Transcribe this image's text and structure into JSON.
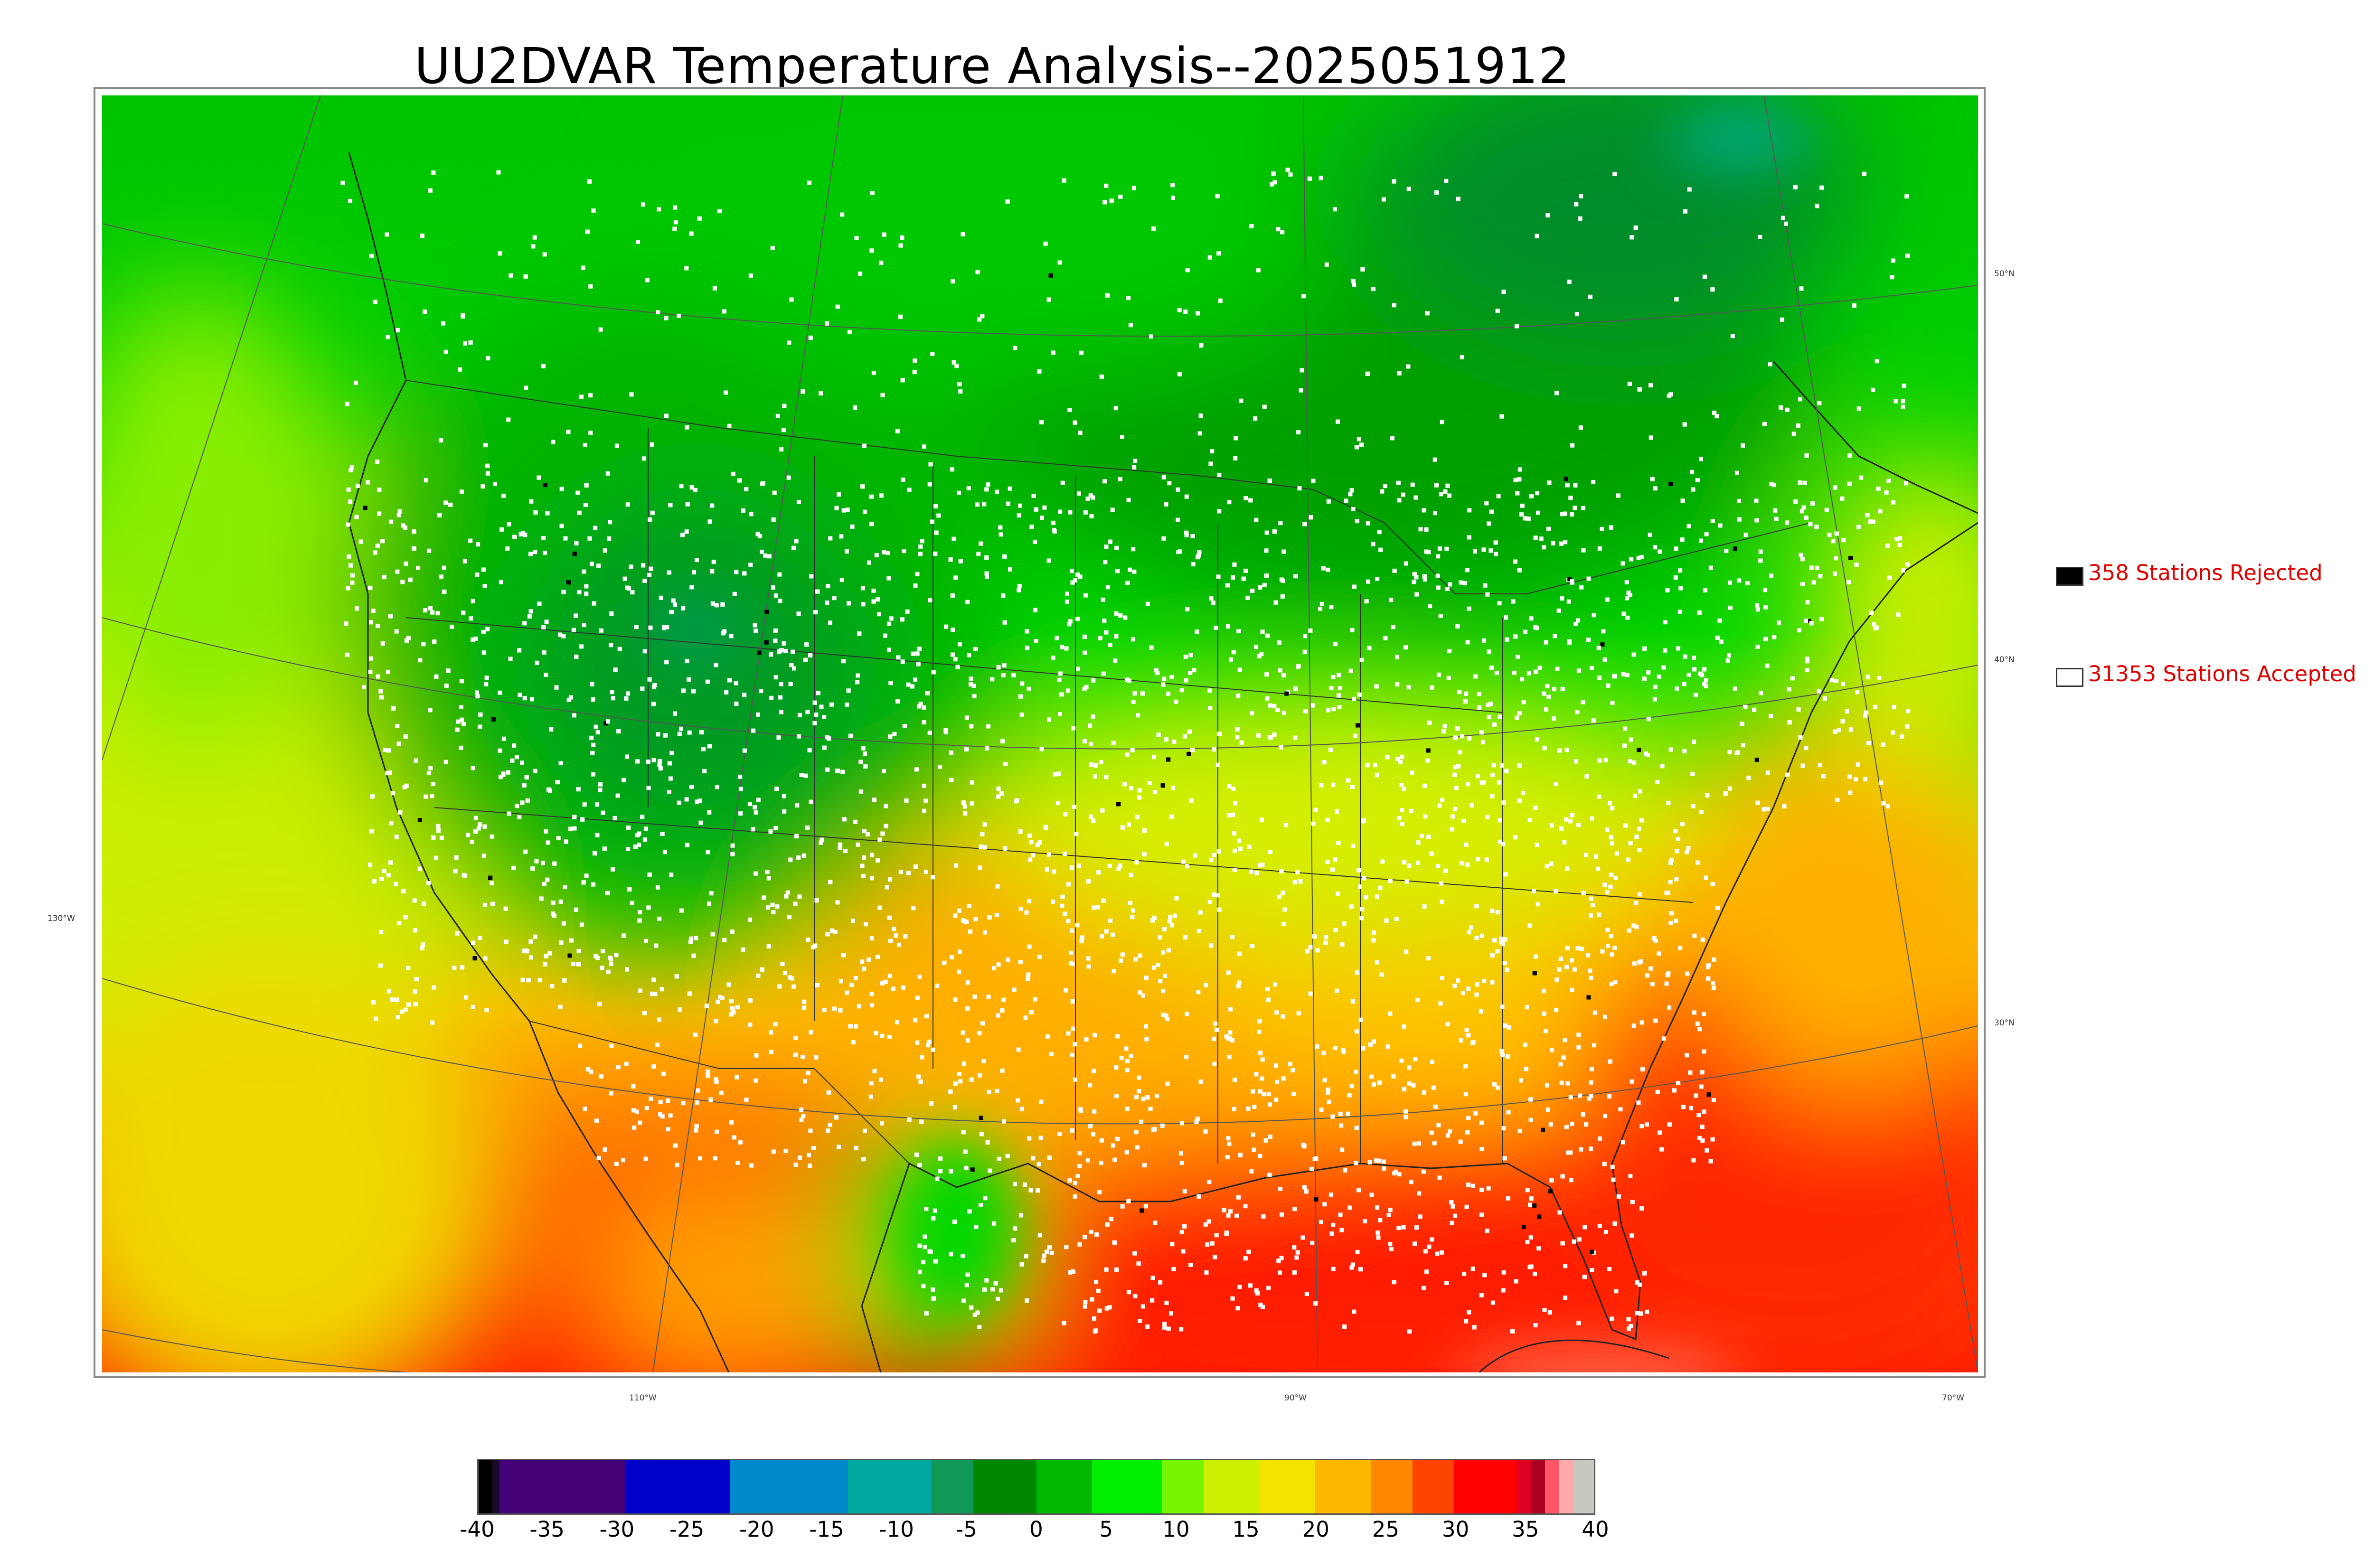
{
  "title": "UU2DVAR Temperature Analysis--2025051912",
  "legend": {
    "rejected": {
      "label": "358 Stations Rejected",
      "swatch_color": "#000000"
    },
    "accepted": {
      "label": "31353 Stations Accepted",
      "swatch_color": "#ffffff"
    }
  },
  "graticule": {
    "lat_labels": [
      "50°N",
      "40°N",
      "30°N"
    ],
    "lon_labels": [
      "130°W",
      "110°W",
      "90°W",
      "70°W"
    ]
  },
  "colorbar": {
    "ticks": [
      "-40",
      "-35",
      "-30",
      "-25",
      "-20",
      "-15",
      "-10",
      "-5",
      "0",
      "5",
      "10",
      "15",
      "20",
      "25",
      "30",
      "35",
      "40"
    ],
    "range": [
      -40,
      40
    ],
    "segments": [
      {
        "from": -40,
        "to": -39,
        "color": "#000000"
      },
      {
        "from": -39,
        "to": -38.5,
        "color": "#1a0a2a"
      },
      {
        "from": -38.5,
        "to": -29.5,
        "color": "#440077"
      },
      {
        "from": -29.5,
        "to": -22,
        "color": "#0000cc"
      },
      {
        "from": -22,
        "to": -13.5,
        "color": "#0088cc"
      },
      {
        "from": -13.5,
        "to": -7.5,
        "color": "#00a8a0"
      },
      {
        "from": -7.5,
        "to": -4.5,
        "color": "#109858"
      },
      {
        "from": -4.5,
        "to": 0,
        "color": "#008800"
      },
      {
        "from": 0,
        "to": 4,
        "color": "#00b800"
      },
      {
        "from": 4,
        "to": 9,
        "color": "#00ee00"
      },
      {
        "from": 9,
        "to": 12,
        "color": "#77f500"
      },
      {
        "from": 12,
        "to": 16,
        "color": "#ccf000"
      },
      {
        "from": 16,
        "to": 20,
        "color": "#f2e400"
      },
      {
        "from": 20,
        "to": 24,
        "color": "#ffb800"
      },
      {
        "from": 24,
        "to": 27,
        "color": "#ff8800"
      },
      {
        "from": 27,
        "to": 30,
        "color": "#ff4400"
      },
      {
        "from": 30,
        "to": 34.5,
        "color": "#ff0000"
      },
      {
        "from": 34.5,
        "to": 35.5,
        "color": "#dd0022"
      },
      {
        "from": 35.5,
        "to": 36.5,
        "color": "#aa0022"
      },
      {
        "from": 36.5,
        "to": 37.5,
        "color": "#ff5566"
      },
      {
        "from": 37.5,
        "to": 38.5,
        "color": "#ffaaaa"
      },
      {
        "from": 38.5,
        "to": 40,
        "color": "#c8c8c0"
      }
    ]
  },
  "colors": {
    "cold_north": "#00a000",
    "cool": "#00e000",
    "mild": "#ccee00",
    "warm": "#ffb000",
    "hot": "#ff2a00",
    "station_accepted": "#ffffff",
    "station_rejected": "#000000"
  }
}
